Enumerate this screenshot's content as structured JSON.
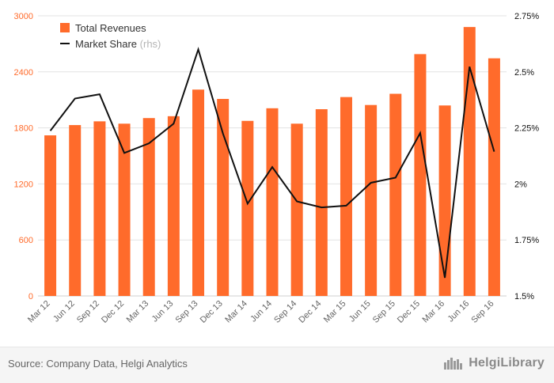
{
  "chart_data": {
    "type": "bar",
    "categories": [
      "Mar 12",
      "Jun 12",
      "Sep 12",
      "Dec 12",
      "Mar 13",
      "Jun 13",
      "Sep 13",
      "Dec 13",
      "Mar 14",
      "Jun 14",
      "Sep 14",
      "Dec 14",
      "Mar 15",
      "Jun 15",
      "Sep 15",
      "Dec 15",
      "Mar 16",
      "Jun 16",
      "Sep 16"
    ],
    "series": [
      {
        "name": "Total Revenues",
        "type": "bar",
        "axis": "left",
        "color": "#ff6b2b",
        "values": [
          1720,
          1830,
          1870,
          1845,
          1905,
          1925,
          2210,
          2110,
          1875,
          2010,
          1845,
          2000,
          2130,
          2045,
          2165,
          2590,
          2040,
          2880,
          2545
        ]
      },
      {
        "name": "Market Share",
        "name_suffix": "(rhs)",
        "type": "line",
        "axis": "right",
        "color": "#111111",
        "values": [
          0.02237,
          0.02381,
          0.024,
          0.02138,
          0.02181,
          0.02269,
          0.026,
          0.02225,
          0.01912,
          0.02075,
          0.01922,
          0.01895,
          0.01903,
          0.02005,
          0.02028,
          0.02227,
          0.01581,
          0.02523,
          0.02144
        ]
      }
    ],
    "y_left": {
      "ylim": [
        0,
        3000
      ],
      "ticks": [
        0,
        600,
        1200,
        1800,
        2400,
        3000
      ],
      "tick_labels": [
        "0",
        "600",
        "1200",
        "1800",
        "2400",
        "3000"
      ]
    },
    "y_right": {
      "ylim": [
        0.015,
        0.0275
      ],
      "ticks": [
        0.015,
        0.0175,
        0.02,
        0.0225,
        0.025,
        0.0275
      ],
      "tick_labels": [
        "1.5%",
        "1.75%",
        "2%",
        "2.25%",
        "2.5%",
        "2.75%"
      ]
    },
    "grid": true,
    "legend": "top-left"
  },
  "footer": {
    "source": "Source: Company Data, Helgi Analytics",
    "brand": "HelgiLibrary"
  }
}
